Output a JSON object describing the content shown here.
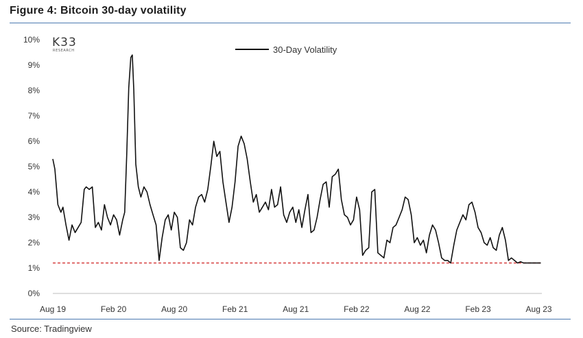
{
  "figure_title": "Figure 4: Bitcoin 30-day volatility",
  "source_text": "Source: Tradingview",
  "logo": {
    "main": "K33",
    "sub": "RESEARCH"
  },
  "colors": {
    "line": "#111111",
    "threshold": "#d94a4a",
    "rule": "#4a78b0"
  },
  "chart_data": {
    "type": "line",
    "title": "Figure 4: Bitcoin 30-day volatility",
    "xlabel": "",
    "ylabel": "",
    "ylim": [
      0,
      10
    ],
    "xlim": [
      0,
      48.3
    ],
    "x_unit": "months since Aug 2019",
    "y_tick_labels": [
      "0%",
      "1%",
      "2%",
      "3%",
      "4%",
      "5%",
      "6%",
      "7%",
      "8%",
      "9%",
      "10%"
    ],
    "x_tick_labels": [
      "Aug 19",
      "Feb 20",
      "Aug 20",
      "Feb 21",
      "Aug 21",
      "Feb 22",
      "Aug 22",
      "Feb 23",
      "Aug 23"
    ],
    "legend": {
      "label": "30-Day Volatility",
      "placement": "top-center"
    },
    "threshold": {
      "value": 1.2,
      "style": "dashed"
    },
    "series": [
      {
        "name": "30-Day Volatility",
        "x": [
          0,
          0.2,
          0.5,
          0.8,
          1.0,
          1.3,
          1.6,
          1.9,
          2.2,
          2.5,
          2.8,
          3.1,
          3.3,
          3.6,
          3.9,
          4.2,
          4.5,
          4.8,
          5.1,
          5.4,
          5.7,
          6.0,
          6.3,
          6.6,
          6.9,
          7.1,
          7.3,
          7.5,
          7.7,
          7.85,
          8.0,
          8.2,
          8.45,
          8.7,
          9.0,
          9.3,
          9.6,
          9.9,
          10.2,
          10.5,
          10.8,
          11.1,
          11.4,
          11.7,
          12.0,
          12.3,
          12.6,
          12.9,
          13.2,
          13.5,
          13.8,
          14.1,
          14.4,
          14.7,
          15.0,
          15.3,
          15.6,
          15.9,
          16.2,
          16.5,
          16.8,
          17.1,
          17.4,
          17.7,
          18.0,
          18.3,
          18.6,
          18.9,
          19.2,
          19.5,
          19.8,
          20.1,
          20.4,
          20.7,
          21.0,
          21.3,
          21.6,
          21.9,
          22.2,
          22.5,
          22.8,
          23.1,
          23.4,
          23.7,
          24.0,
          24.3,
          24.6,
          24.9,
          25.2,
          25.5,
          25.8,
          26.1,
          26.4,
          26.7,
          27.0,
          27.3,
          27.6,
          27.9,
          28.2,
          28.5,
          28.8,
          29.1,
          29.4,
          29.7,
          30.0,
          30.3,
          30.6,
          30.9,
          31.2,
          31.5,
          31.8,
          32.1,
          32.4,
          32.7,
          33.0,
          33.3,
          33.6,
          33.9,
          34.2,
          34.5,
          34.8,
          35.1,
          35.4,
          35.7,
          36.0,
          36.3,
          36.6,
          36.9,
          37.2,
          37.5,
          37.8,
          38.1,
          38.4,
          38.7,
          39.0,
          39.3,
          39.6,
          39.9,
          40.2,
          40.5,
          40.8,
          41.1,
          41.4,
          41.7,
          42.0,
          42.3,
          42.6,
          42.9,
          43.2,
          43.5,
          43.8,
          44.1,
          44.4,
          44.7,
          45.0,
          45.3,
          45.6,
          45.9,
          46.2,
          46.5,
          46.8,
          47.1,
          47.4,
          47.7,
          48.0,
          48.2
        ],
        "values": [
          5.3,
          4.9,
          3.5,
          3.2,
          3.4,
          2.7,
          2.1,
          2.7,
          2.4,
          2.6,
          2.8,
          4.1,
          4.2,
          4.1,
          4.2,
          2.6,
          2.8,
          2.5,
          3.5,
          3.0,
          2.7,
          3.1,
          2.9,
          2.3,
          2.9,
          3.2,
          5.5,
          8.1,
          9.3,
          9.4,
          8.0,
          5.1,
          4.2,
          3.8,
          4.2,
          4.0,
          3.5,
          3.1,
          2.7,
          1.3,
          2.2,
          2.9,
          3.1,
          2.5,
          3.2,
          3.0,
          1.8,
          1.7,
          2.0,
          2.9,
          2.7,
          3.4,
          3.8,
          3.9,
          3.6,
          4.1,
          5.0,
          6.0,
          5.4,
          5.6,
          4.4,
          3.6,
          2.8,
          3.4,
          4.4,
          5.8,
          6.2,
          5.9,
          5.3,
          4.4,
          3.6,
          3.9,
          3.2,
          3.4,
          3.6,
          3.3,
          4.1,
          3.4,
          3.5,
          4.2,
          3.1,
          2.8,
          3.2,
          3.4,
          2.8,
          3.3,
          2.6,
          3.3,
          3.9,
          2.4,
          2.5,
          3.0,
          3.7,
          4.3,
          4.4,
          3.4,
          4.6,
          4.7,
          4.9,
          3.7,
          3.1,
          3.0,
          2.7,
          2.9,
          3.8,
          3.3,
          1.5,
          1.7,
          1.8,
          4.0,
          4.1,
          1.6,
          1.5,
          1.4,
          2.1,
          2.0,
          2.6,
          2.7,
          3.0,
          3.3,
          3.8,
          3.7,
          3.1,
          2.0,
          2.2,
          1.9,
          2.1,
          1.6,
          2.3,
          2.7,
          2.5,
          2.0,
          1.4,
          1.3,
          1.3,
          1.2,
          1.9,
          2.5,
          2.8,
          3.1,
          2.9,
          3.5,
          3.6,
          3.2,
          2.6,
          2.4,
          2.0,
          1.9,
          2.2,
          1.8,
          1.7,
          2.3,
          2.6,
          2.1,
          1.3,
          1.4,
          1.3,
          1.2,
          1.25,
          1.2,
          1.2,
          1.2,
          1.2,
          1.2,
          1.2,
          1.2
        ]
      }
    ]
  }
}
